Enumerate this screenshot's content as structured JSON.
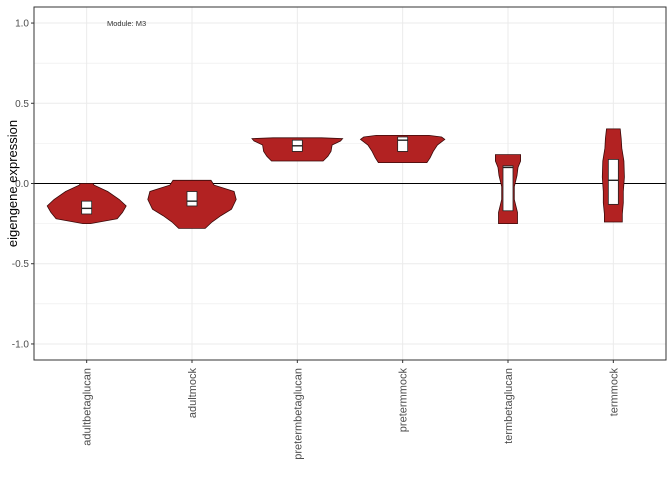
{
  "chart_data": {
    "type": "violin",
    "annotation": "Module: M3",
    "ylabel": "eigengene expression",
    "xlabel": "",
    "ylim": [
      -1.1,
      1.1
    ],
    "yticks": [
      1.0,
      0.5,
      0.0,
      -0.5,
      -1.0
    ],
    "ytick_labels": [
      "1.0",
      "0.5",
      "0.0",
      "-0.5",
      "-1.0"
    ],
    "hline": 0,
    "grid": true,
    "fill_color": "#b22222",
    "outline_color": "#3a0a0a",
    "box_fill": "#ffffff",
    "categories": [
      "adultbetaglucan",
      "adultmock",
      "pretermbetaglucan",
      "pretermmock",
      "termbetaglucan",
      "termmock"
    ],
    "violins": [
      {
        "category": "adultbetaglucan",
        "box": {
          "q1": -0.19,
          "median": -0.155,
          "q3": -0.11
        },
        "profile": [
          [
            -0.25,
            0.07
          ],
          [
            -0.22,
            0.58
          ],
          [
            -0.18,
            0.68
          ],
          [
            -0.14,
            0.75
          ],
          [
            -0.1,
            0.62
          ],
          [
            -0.05,
            0.4
          ],
          [
            -0.01,
            0.14
          ],
          [
            0.0,
            0.12
          ]
        ]
      },
      {
        "category": "adultmock",
        "box": {
          "q1": -0.14,
          "median": -0.11,
          "q3": -0.05
        },
        "profile": [
          [
            -0.28,
            0.25
          ],
          [
            -0.24,
            0.38
          ],
          [
            -0.2,
            0.55
          ],
          [
            -0.16,
            0.75
          ],
          [
            -0.1,
            0.84
          ],
          [
            -0.05,
            0.8
          ],
          [
            -0.01,
            0.42
          ],
          [
            0.02,
            0.36
          ]
        ]
      },
      {
        "category": "pretermbetaglucan",
        "box": {
          "q1": 0.2,
          "median": 0.235,
          "q3": 0.27
        },
        "profile": [
          [
            0.14,
            0.49
          ],
          [
            0.17,
            0.58
          ],
          [
            0.2,
            0.64
          ],
          [
            0.24,
            0.66
          ],
          [
            0.265,
            0.82
          ],
          [
            0.28,
            0.86
          ],
          [
            0.285,
            0.46
          ]
        ]
      },
      {
        "category": "pretermmock",
        "box": {
          "q1": 0.2,
          "median": 0.27,
          "q3": 0.29
        },
        "profile": [
          [
            0.13,
            0.46
          ],
          [
            0.16,
            0.52
          ],
          [
            0.2,
            0.58
          ],
          [
            0.24,
            0.66
          ],
          [
            0.275,
            0.8
          ],
          [
            0.29,
            0.74
          ],
          [
            0.3,
            0.5
          ]
        ]
      },
      {
        "category": "termbetaglucan",
        "box": {
          "q1": -0.17,
          "median": 0.1,
          "q3": 0.11
        },
        "profile": [
          [
            -0.25,
            0.18
          ],
          [
            -0.18,
            0.18
          ],
          [
            -0.1,
            0.12
          ],
          [
            -0.02,
            0.12
          ],
          [
            0.05,
            0.17
          ],
          [
            0.1,
            0.19
          ],
          [
            0.14,
            0.24
          ],
          [
            0.18,
            0.24
          ]
        ]
      },
      {
        "category": "termmock",
        "box": {
          "q1": -0.13,
          "median": 0.02,
          "q3": 0.15
        },
        "profile": [
          [
            -0.24,
            0.17
          ],
          [
            -0.19,
            0.17
          ],
          [
            -0.12,
            0.19
          ],
          [
            -0.05,
            0.19
          ],
          [
            0.04,
            0.21
          ],
          [
            0.14,
            0.2
          ],
          [
            0.22,
            0.16
          ],
          [
            0.28,
            0.15
          ],
          [
            0.34,
            0.13
          ]
        ]
      }
    ]
  }
}
